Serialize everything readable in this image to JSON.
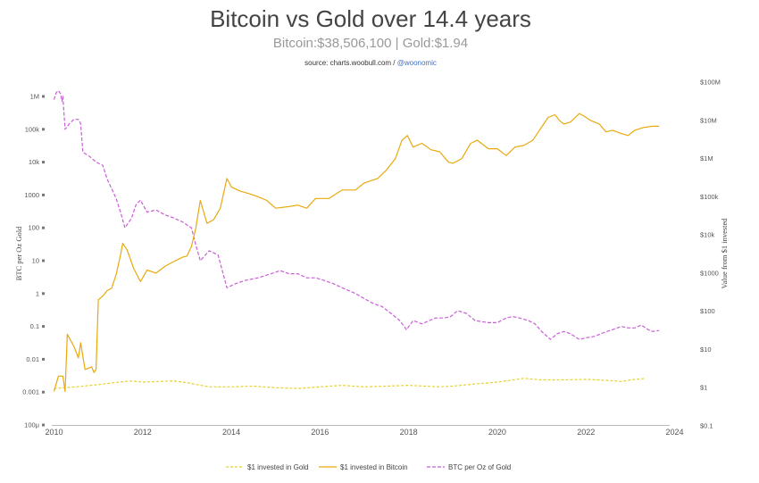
{
  "chart_data": {
    "type": "line",
    "title": "Bitcoin vs Gold over 14.4 years",
    "subtitle": "Bitcoin:$38,506,100 | Gold:$1.94",
    "source": {
      "prefix": "source: charts.woobull.com / ",
      "handle": "@woonomic"
    },
    "x_ticks": [
      "2010",
      "2012",
      "2014",
      "2016",
      "2018",
      "2020",
      "2022",
      "2024"
    ],
    "x_range": [
      2009.95,
      2024.05
    ],
    "left_axis": {
      "label": "BTC per Oz Gold",
      "scale": "log",
      "range": [
        0.0001,
        10000000
      ],
      "ticks": [
        {
          "v": 1000000,
          "t": "1M"
        },
        {
          "v": 100000,
          "t": "100k"
        },
        {
          "v": 10000,
          "t": "10k"
        },
        {
          "v": 1000,
          "t": "1000"
        },
        {
          "v": 100,
          "t": "100"
        },
        {
          "v": 10,
          "t": "10"
        },
        {
          "v": 1,
          "t": "1"
        },
        {
          "v": 0.1,
          "t": "0.1"
        },
        {
          "v": 0.01,
          "t": "0.01"
        },
        {
          "v": 0.001,
          "t": "0.001"
        },
        {
          "v": 0.0001,
          "t": "100μ"
        }
      ]
    },
    "right_axis": {
      "label": "Value from $1 invested",
      "scale": "log",
      "range": [
        0.1,
        100000000
      ],
      "ticks": [
        {
          "v": 100000000,
          "t": "$100M"
        },
        {
          "v": 10000000,
          "t": "$10M"
        },
        {
          "v": 1000000,
          "t": "$1M"
        },
        {
          "v": 100000,
          "t": "$100k"
        },
        {
          "v": 10000,
          "t": "$10k"
        },
        {
          "v": 1000,
          "t": "$1000"
        },
        {
          "v": 100,
          "t": "$100"
        },
        {
          "v": 10,
          "t": "$10"
        },
        {
          "v": 1,
          "t": "$1"
        },
        {
          "v": 0.1,
          "t": "$0.1"
        }
      ]
    },
    "series": [
      {
        "name": "$1 invested in Gold",
        "axis": "right",
        "color": "#e6d22e",
        "dash": "3,2",
        "points": [
          [
            2010.0,
            0.95
          ],
          [
            2010.5,
            1.05
          ],
          [
            2011.0,
            1.2
          ],
          [
            2011.7,
            1.5
          ],
          [
            2012.0,
            1.4
          ],
          [
            2012.7,
            1.5
          ],
          [
            2013.0,
            1.35
          ],
          [
            2013.5,
            1.05
          ],
          [
            2014.0,
            1.05
          ],
          [
            2014.5,
            1.1
          ],
          [
            2015.0,
            1.0
          ],
          [
            2015.5,
            0.95
          ],
          [
            2016.0,
            1.05
          ],
          [
            2016.5,
            1.15
          ],
          [
            2017.0,
            1.05
          ],
          [
            2017.5,
            1.1
          ],
          [
            2018.0,
            1.15
          ],
          [
            2018.7,
            1.05
          ],
          [
            2019.0,
            1.1
          ],
          [
            2019.5,
            1.25
          ],
          [
            2020.0,
            1.4
          ],
          [
            2020.6,
            1.75
          ],
          [
            2021.0,
            1.6
          ],
          [
            2021.5,
            1.6
          ],
          [
            2022.0,
            1.65
          ],
          [
            2022.5,
            1.55
          ],
          [
            2022.8,
            1.45
          ],
          [
            2023.0,
            1.6
          ],
          [
            2023.35,
            1.75
          ]
        ]
      },
      {
        "name": "$1 invested in Bitcoin",
        "axis": "right",
        "color": "#e8a90f",
        "dash": "",
        "points": [
          [
            2010.0,
            0.8
          ],
          [
            2010.1,
            2.0
          ],
          [
            2010.2,
            2.0
          ],
          [
            2010.25,
            0.8
          ],
          [
            2010.3,
            25
          ],
          [
            2010.45,
            12
          ],
          [
            2010.55,
            6
          ],
          [
            2010.6,
            15
          ],
          [
            2010.7,
            3.0
          ],
          [
            2010.85,
            3.5
          ],
          [
            2010.9,
            2.5
          ],
          [
            2010.95,
            3.0
          ],
          [
            2011.0,
            200
          ],
          [
            2011.1,
            250
          ],
          [
            2011.2,
            350
          ],
          [
            2011.3,
            400
          ],
          [
            2011.4,
            900
          ],
          [
            2011.5,
            3000
          ],
          [
            2011.55,
            6000
          ],
          [
            2011.65,
            4000
          ],
          [
            2011.8,
            1300
          ],
          [
            2011.95,
            600
          ],
          [
            2012.1,
            1200
          ],
          [
            2012.3,
            1000
          ],
          [
            2012.5,
            1500
          ],
          [
            2012.7,
            2000
          ],
          [
            2012.9,
            2600
          ],
          [
            2013.0,
            2800
          ],
          [
            2013.1,
            5000
          ],
          [
            2013.2,
            15000
          ],
          [
            2013.3,
            80000
          ],
          [
            2013.45,
            20000
          ],
          [
            2013.6,
            25000
          ],
          [
            2013.75,
            50000
          ],
          [
            2013.9,
            300000
          ],
          [
            2014.0,
            180000
          ],
          [
            2014.2,
            140000
          ],
          [
            2014.4,
            120000
          ],
          [
            2014.6,
            100000
          ],
          [
            2014.8,
            80000
          ],
          [
            2015.0,
            50000
          ],
          [
            2015.3,
            55000
          ],
          [
            2015.5,
            60000
          ],
          [
            2015.7,
            50000
          ],
          [
            2015.9,
            90000
          ],
          [
            2016.2,
            90000
          ],
          [
            2016.5,
            150000
          ],
          [
            2016.8,
            150000
          ],
          [
            2017.0,
            230000
          ],
          [
            2017.3,
            300000
          ],
          [
            2017.5,
            500000
          ],
          [
            2017.7,
            1000000
          ],
          [
            2017.85,
            3000000
          ],
          [
            2017.97,
            4000000
          ],
          [
            2018.1,
            2000000
          ],
          [
            2018.3,
            2500000
          ],
          [
            2018.5,
            1700000
          ],
          [
            2018.7,
            1500000
          ],
          [
            2018.9,
            800000
          ],
          [
            2019.0,
            750000
          ],
          [
            2019.2,
            1000000
          ],
          [
            2019.4,
            2500000
          ],
          [
            2019.55,
            3000000
          ],
          [
            2019.8,
            1800000
          ],
          [
            2020.0,
            1800000
          ],
          [
            2020.2,
            1200000
          ],
          [
            2020.4,
            2000000
          ],
          [
            2020.6,
            2200000
          ],
          [
            2020.8,
            3000000
          ],
          [
            2020.95,
            5500000
          ],
          [
            2021.15,
            12000000
          ],
          [
            2021.3,
            14000000
          ],
          [
            2021.4,
            10000000
          ],
          [
            2021.5,
            8000000
          ],
          [
            2021.65,
            9000000
          ],
          [
            2021.85,
            15000000
          ],
          [
            2021.95,
            13000000
          ],
          [
            2022.1,
            10000000
          ],
          [
            2022.3,
            8000000
          ],
          [
            2022.45,
            5000000
          ],
          [
            2022.6,
            5500000
          ],
          [
            2022.8,
            4500000
          ],
          [
            2022.95,
            4000000
          ],
          [
            2023.1,
            5500000
          ],
          [
            2023.3,
            6500000
          ],
          [
            2023.5,
            7000000
          ],
          [
            2023.65,
            7000000
          ]
        ]
      },
      {
        "name": "BTC per Oz of Gold",
        "axis": "left",
        "color": "#c85fd6",
        "dash": "4,2",
        "points": [
          [
            2010.0,
            800000
          ],
          [
            2010.05,
            1300000
          ],
          [
            2010.1,
            1500000
          ],
          [
            2010.15,
            1200000
          ],
          [
            2010.18,
            700000
          ],
          [
            2010.2,
            1000000
          ],
          [
            2010.25,
            100000
          ],
          [
            2010.35,
            150000
          ],
          [
            2010.45,
            200000
          ],
          [
            2010.55,
            200000
          ],
          [
            2010.6,
            150000
          ],
          [
            2010.65,
            20000
          ],
          [
            2010.8,
            15000
          ],
          [
            2010.95,
            10000
          ],
          [
            2011.1,
            8000
          ],
          [
            2011.2,
            3000
          ],
          [
            2011.4,
            800
          ],
          [
            2011.5,
            300
          ],
          [
            2011.6,
            100
          ],
          [
            2011.75,
            200
          ],
          [
            2011.85,
            500
          ],
          [
            2011.95,
            700
          ],
          [
            2012.1,
            300
          ],
          [
            2012.3,
            350
          ],
          [
            2012.5,
            250
          ],
          [
            2012.7,
            200
          ],
          [
            2012.9,
            150
          ],
          [
            2013.1,
            100
          ],
          [
            2013.2,
            30
          ],
          [
            2013.3,
            10
          ],
          [
            2013.5,
            20
          ],
          [
            2013.7,
            15
          ],
          [
            2013.9,
            1.5
          ],
          [
            2014.1,
            2.0
          ],
          [
            2014.3,
            2.5
          ],
          [
            2014.6,
            3.0
          ],
          [
            2014.9,
            4.0
          ],
          [
            2015.1,
            5.0
          ],
          [
            2015.3,
            4.0
          ],
          [
            2015.5,
            4.0
          ],
          [
            2015.7,
            3.0
          ],
          [
            2015.9,
            3.0
          ],
          [
            2016.1,
            2.5
          ],
          [
            2016.3,
            2.0
          ],
          [
            2016.5,
            1.5
          ],
          [
            2016.8,
            1.0
          ],
          [
            2017.0,
            0.7
          ],
          [
            2017.2,
            0.5
          ],
          [
            2017.4,
            0.4
          ],
          [
            2017.6,
            0.25
          ],
          [
            2017.8,
            0.15
          ],
          [
            2017.95,
            0.08
          ],
          [
            2018.1,
            0.15
          ],
          [
            2018.3,
            0.12
          ],
          [
            2018.6,
            0.18
          ],
          [
            2018.8,
            0.18
          ],
          [
            2018.95,
            0.2
          ],
          [
            2019.1,
            0.3
          ],
          [
            2019.3,
            0.25
          ],
          [
            2019.5,
            0.15
          ],
          [
            2019.8,
            0.13
          ],
          [
            2020.0,
            0.13
          ],
          [
            2020.2,
            0.18
          ],
          [
            2020.35,
            0.2
          ],
          [
            2020.5,
            0.18
          ],
          [
            2020.7,
            0.15
          ],
          [
            2020.85,
            0.12
          ],
          [
            2021.0,
            0.07
          ],
          [
            2021.2,
            0.04
          ],
          [
            2021.35,
            0.06
          ],
          [
            2021.5,
            0.07
          ],
          [
            2021.65,
            0.06
          ],
          [
            2021.85,
            0.04
          ],
          [
            2022.0,
            0.045
          ],
          [
            2022.2,
            0.05
          ],
          [
            2022.4,
            0.065
          ],
          [
            2022.6,
            0.08
          ],
          [
            2022.8,
            0.1
          ],
          [
            2022.95,
            0.09
          ],
          [
            2023.1,
            0.09
          ],
          [
            2023.25,
            0.11
          ],
          [
            2023.4,
            0.08
          ],
          [
            2023.5,
            0.07
          ],
          [
            2023.65,
            0.075
          ]
        ]
      }
    ],
    "legend_position": "bottom"
  }
}
